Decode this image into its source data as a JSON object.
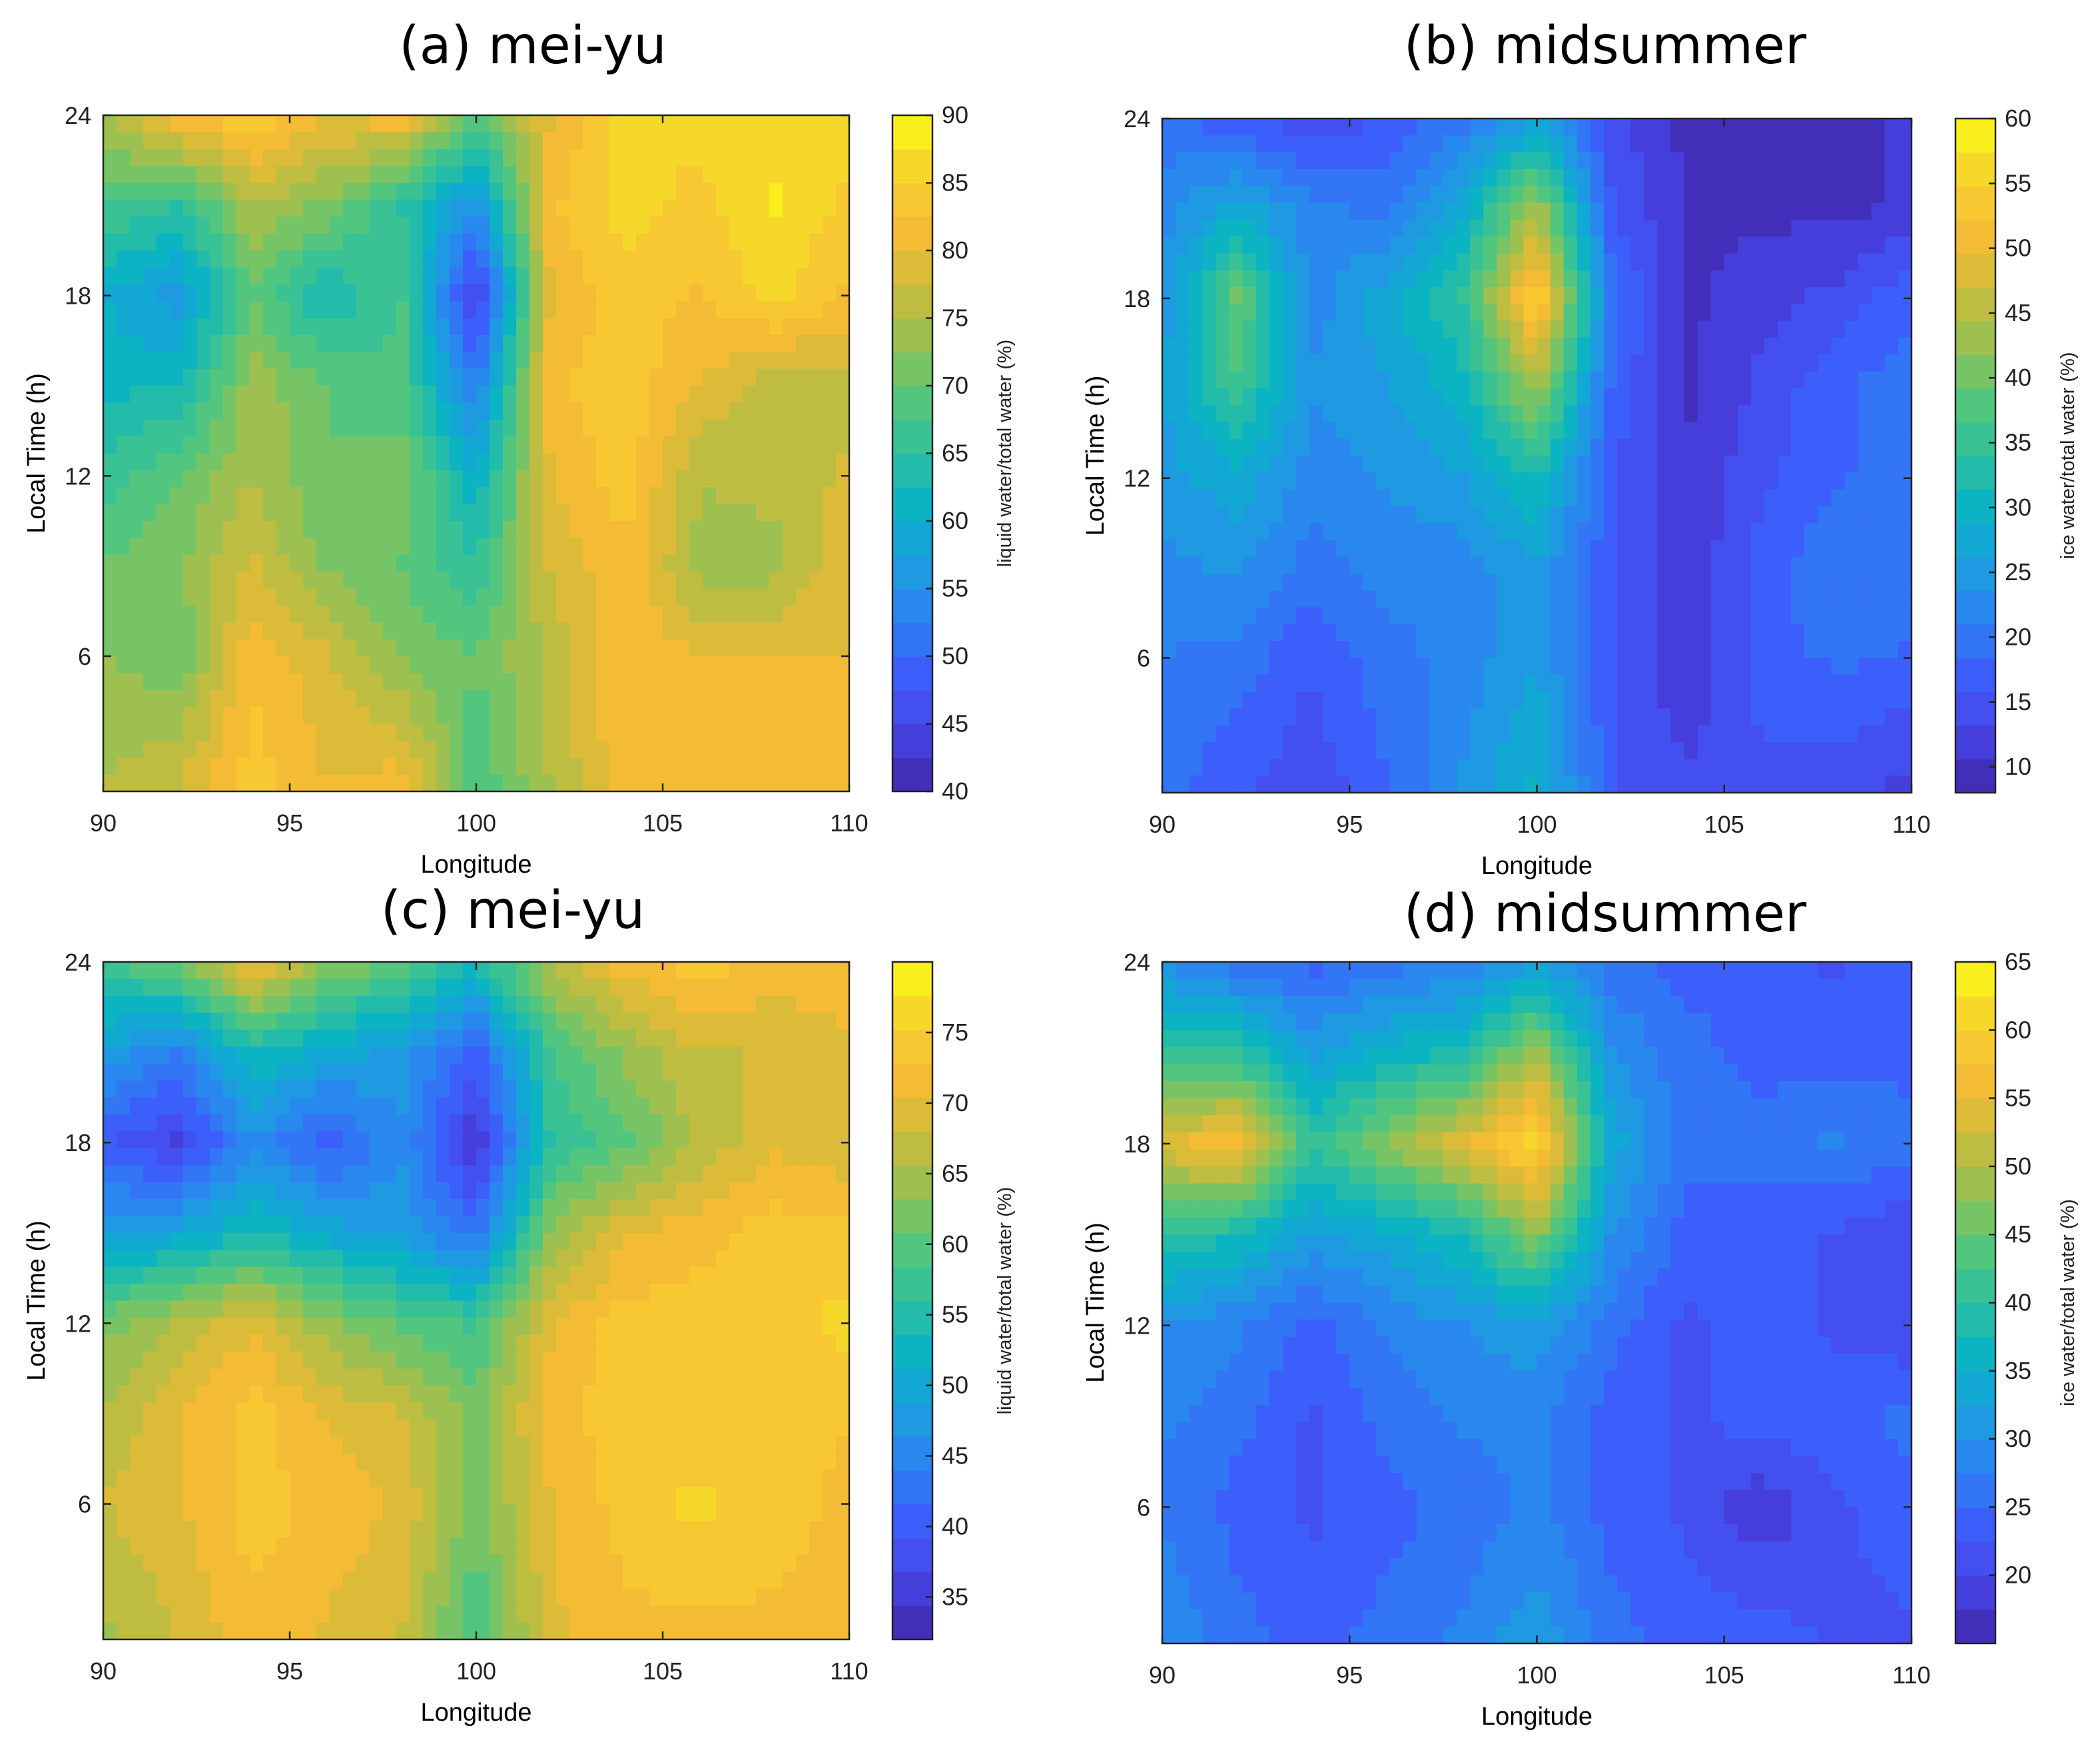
{
  "colormap": [
    "#3e26a8",
    "#4741e0",
    "#3e5cfd",
    "#2d7ff2",
    "#1e9ce0",
    "#08b2c6",
    "#2ebf9e",
    "#56c77c",
    "#98c152",
    "#cebb3a",
    "#f8bb34",
    "#f6d42d",
    "#fafa14"
  ],
  "chart_data": [
    {
      "id": "a",
      "type": "heatmap",
      "title": "(a) mei-yu",
      "xlabel": "Longitude",
      "ylabel": "Local Time (h)",
      "colorbar_label": "liquid water/total water (%)",
      "xlim": [
        90,
        110
      ],
      "ylim": [
        1.5,
        24
      ],
      "clim": [
        40,
        90
      ],
      "xticks": [
        "90",
        "95",
        "100",
        "105",
        "110"
      ],
      "yticks": [
        "6",
        "12",
        "18",
        "24"
      ],
      "cticks": [
        "40",
        "45",
        "50",
        "55",
        "60",
        "65",
        "70",
        "75",
        "80",
        "85",
        "90"
      ],
      "x": [
        90,
        92,
        94,
        96,
        98,
        100,
        102,
        104,
        106,
        108,
        110
      ],
      "y": [
        1.5,
        6,
        9,
        12,
        15,
        18,
        21,
        24
      ],
      "z": [
        [
          75,
          78,
          84,
          80,
          82,
          68,
          75,
          82,
          82,
          82,
          82
        ],
        [
          73,
          70,
          82,
          78,
          72,
          70,
          76,
          82,
          80,
          80,
          80
        ],
        [
          70,
          72,
          78,
          72,
          70,
          65,
          78,
          82,
          74,
          74,
          80
        ],
        [
          66,
          70,
          75,
          70,
          72,
          60,
          80,
          84,
          75,
          76,
          78
        ],
        [
          62,
          62,
          74,
          70,
          68,
          52,
          82,
          84,
          80,
          76,
          76
        ],
        [
          60,
          56,
          70,
          62,
          68,
          43,
          80,
          84,
          82,
          86,
          82
        ],
        [
          68,
          65,
          75,
          72,
          65,
          55,
          82,
          86,
          84,
          88,
          84
        ],
        [
          75,
          82,
          85,
          80,
          82,
          68,
          80,
          86,
          86,
          86,
          88
        ]
      ]
    },
    {
      "id": "b",
      "type": "heatmap",
      "title": "(b) midsummer",
      "xlabel": "Longitude",
      "ylabel": "Local Time (h)",
      "colorbar_label": "ice water/total water (%)",
      "xlim": [
        90,
        110
      ],
      "ylim": [
        1.5,
        24
      ],
      "clim": [
        8,
        60
      ],
      "xticks": [
        "90",
        "95",
        "100",
        "105",
        "110"
      ],
      "yticks": [
        "6",
        "12",
        "18",
        "24"
      ],
      "cticks": [
        "10",
        "15",
        "20",
        "25",
        "30",
        "35",
        "40",
        "45",
        "50",
        "55",
        "60"
      ],
      "x": [
        90,
        92,
        94,
        96,
        98,
        100,
        102,
        104,
        106,
        108,
        110
      ],
      "y": [
        1.5,
        6,
        9,
        12,
        15,
        18,
        21,
        24
      ],
      "z": [
        [
          20,
          16,
          14,
          18,
          24,
          30,
          16,
          14,
          15,
          14,
          12
        ],
        [
          21,
          20,
          16,
          20,
          22,
          26,
          16,
          11,
          17,
          19,
          18
        ],
        [
          23,
          24,
          20,
          22,
          22,
          26,
          16,
          11,
          17,
          21,
          20
        ],
        [
          25,
          28,
          22,
          24,
          26,
          32,
          16,
          11,
          15,
          18,
          20
        ],
        [
          26,
          36,
          24,
          26,
          30,
          44,
          18,
          10,
          14,
          18,
          20
        ],
        [
          24,
          40,
          22,
          28,
          34,
          56,
          20,
          10,
          12,
          14,
          18
        ],
        [
          22,
          28,
          22,
          20,
          28,
          44,
          16,
          10,
          10,
          10,
          11
        ],
        [
          20,
          16,
          14,
          16,
          20,
          26,
          14,
          10,
          10,
          10,
          11
        ]
      ]
    },
    {
      "id": "c",
      "type": "heatmap",
      "title": "(c) mei-yu",
      "xlabel": "Longitude",
      "ylabel": "Local Time (h)",
      "colorbar_label": "liquid water/total water (%)",
      "xlim": [
        90,
        110
      ],
      "ylim": [
        1.5,
        24
      ],
      "clim": [
        32,
        80
      ],
      "xticks": [
        "90",
        "95",
        "100",
        "105",
        "110"
      ],
      "yticks": [
        "6",
        "12",
        "18",
        "24"
      ],
      "cticks": [
        "35",
        "40",
        "45",
        "50",
        "55",
        "60",
        "65",
        "70",
        "75"
      ],
      "x": [
        90,
        92,
        94,
        96,
        98,
        100,
        102,
        104,
        106,
        108,
        110
      ],
      "y": [
        1.5,
        6,
        9,
        12,
        15,
        18,
        21,
        24
      ],
      "z": [
        [
          65,
          68,
          72,
          70,
          68,
          58,
          70,
          72,
          72,
          72,
          72
        ],
        [
          68,
          70,
          74,
          72,
          70,
          62,
          70,
          74,
          76,
          74,
          72
        ],
        [
          66,
          70,
          74,
          70,
          68,
          62,
          72,
          74,
          73,
          74,
          73
        ],
        [
          62,
          66,
          70,
          64,
          60,
          58,
          70,
          74,
          74,
          74,
          76
        ],
        [
          48,
          50,
          54,
          50,
          48,
          42,
          64,
          70,
          72,
          74,
          74
        ],
        [
          40,
          36,
          46,
          40,
          46,
          34,
          56,
          60,
          66,
          70,
          68
        ],
        [
          48,
          44,
          54,
          50,
          48,
          40,
          58,
          64,
          68,
          68,
          70
        ],
        [
          58,
          62,
          72,
          64,
          60,
          54,
          66,
          72,
          74,
          72,
          72
        ]
      ]
    },
    {
      "id": "d",
      "type": "heatmap",
      "title": "(d) midsummer",
      "xlabel": "Longitude",
      "ylabel": "Local Time (h)",
      "colorbar_label": "ice water/total water (%)",
      "xlim": [
        90,
        110
      ],
      "ylim": [
        1.5,
        24
      ],
      "clim": [
        15,
        65
      ],
      "xticks": [
        "90",
        "95",
        "100",
        "105",
        "110"
      ],
      "yticks": [
        "6",
        "12",
        "18",
        "24"
      ],
      "cticks": [
        "20",
        "25",
        "30",
        "35",
        "40",
        "45",
        "50",
        "55",
        "60",
        "65"
      ],
      "x": [
        90,
        92,
        94,
        96,
        98,
        100,
        102,
        104,
        106,
        108,
        110
      ],
      "y": [
        1.5,
        6,
        9,
        12,
        15,
        18,
        21,
        24
      ],
      "z": [
        [
          30,
          26,
          24,
          26,
          28,
          32,
          26,
          24,
          24,
          22,
          22
        ],
        [
          27,
          24,
          22,
          24,
          26,
          28,
          24,
          22,
          18,
          22,
          24
        ],
        [
          28,
          26,
          22,
          26,
          28,
          28,
          24,
          22,
          24,
          24,
          26
        ],
        [
          30,
          28,
          24,
          28,
          30,
          32,
          26,
          22,
          24,
          22,
          20
        ],
        [
          40,
          38,
          32,
          34,
          38,
          48,
          30,
          24,
          24,
          22,
          20
        ],
        [
          54,
          58,
          40,
          48,
          54,
          62,
          34,
          26,
          26,
          28,
          26
        ],
        [
          40,
          40,
          32,
          36,
          38,
          50,
          30,
          26,
          24,
          24,
          24
        ],
        [
          30,
          26,
          24,
          26,
          28,
          32,
          26,
          24,
          24,
          22,
          24
        ]
      ]
    }
  ]
}
